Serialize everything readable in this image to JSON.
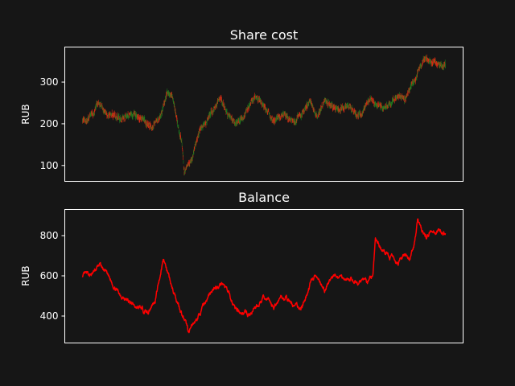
{
  "colors": {
    "background": "#161616",
    "axes": "#ffffff",
    "candle_up": "#1f7a1f",
    "candle_down": "#d62a14",
    "balance_line": "#ff0000"
  },
  "chart_data": [
    {
      "type": "candlestick",
      "title": "Share cost",
      "xlabel": "",
      "ylabel": "RUB",
      "ylim": [
        62,
        384
      ],
      "yticks": [
        100,
        200,
        300
      ],
      "xticks": [],
      "grid": false,
      "n_points": 1500,
      "close_anchors": [
        [
          0,
          210
        ],
        [
          20,
          205
        ],
        [
          60,
          245
        ],
        [
          110,
          220
        ],
        [
          160,
          212
        ],
        [
          230,
          222
        ],
        [
          280,
          190
        ],
        [
          320,
          210
        ],
        [
          350,
          275
        ],
        [
          370,
          270
        ],
        [
          390,
          210
        ],
        [
          410,
          160
        ],
        [
          420,
          80
        ],
        [
          440,
          100
        ],
        [
          460,
          130
        ],
        [
          490,
          190
        ],
        [
          520,
          220
        ],
        [
          550,
          240
        ],
        [
          570,
          260
        ],
        [
          600,
          225
        ],
        [
          630,
          205
        ],
        [
          660,
          210
        ],
        [
          690,
          240
        ],
        [
          710,
          265
        ],
        [
          740,
          245
        ],
        [
          770,
          225
        ],
        [
          790,
          200
        ],
        [
          820,
          225
        ],
        [
          850,
          210
        ],
        [
          880,
          205
        ],
        [
          910,
          235
        ],
        [
          940,
          255
        ],
        [
          970,
          215
        ],
        [
          1000,
          255
        ],
        [
          1030,
          245
        ],
        [
          1060,
          235
        ],
        [
          1090,
          245
        ],
        [
          1120,
          230
        ],
        [
          1150,
          225
        ],
        [
          1180,
          255
        ],
        [
          1210,
          245
        ],
        [
          1240,
          235
        ],
        [
          1270,
          250
        ],
        [
          1300,
          260
        ],
        [
          1330,
          255
        ],
        [
          1360,
          300
        ],
        [
          1380,
          320
        ],
        [
          1400,
          340
        ],
        [
          1420,
          355
        ],
        [
          1440,
          345
        ]
      ]
    },
    {
      "type": "line",
      "title": "Balance",
      "xlabel": "",
      "ylabel": "RUB",
      "ylim": [
        266,
        930
      ],
      "yticks": [
        400,
        600,
        800
      ],
      "xticks": [],
      "grid": false,
      "n_points": 1500,
      "anchors": [
        [
          0,
          600
        ],
        [
          40,
          605
        ],
        [
          70,
          655
        ],
        [
          100,
          610
        ],
        [
          140,
          530
        ],
        [
          180,
          480
        ],
        [
          230,
          440
        ],
        [
          270,
          420
        ],
        [
          300,
          480
        ],
        [
          320,
          600
        ],
        [
          335,
          690
        ],
        [
          350,
          620
        ],
        [
          370,
          540
        ],
        [
          400,
          450
        ],
        [
          420,
          380
        ],
        [
          440,
          320
        ],
        [
          460,
          360
        ],
        [
          480,
          400
        ],
        [
          500,
          450
        ],
        [
          520,
          500
        ],
        [
          550,
          540
        ],
        [
          580,
          570
        ],
        [
          600,
          520
        ],
        [
          630,
          440
        ],
        [
          660,
          420
        ],
        [
          690,
          400
        ],
        [
          720,
          450
        ],
        [
          750,
          490
        ],
        [
          770,
          480
        ],
        [
          790,
          440
        ],
        [
          820,
          500
        ],
        [
          850,
          480
        ],
        [
          870,
          450
        ],
        [
          900,
          440
        ],
        [
          920,
          470
        ],
        [
          940,
          560
        ],
        [
          960,
          600
        ],
        [
          980,
          560
        ],
        [
          1000,
          520
        ],
        [
          1020,
          580
        ],
        [
          1050,
          600
        ],
        [
          1080,
          590
        ],
        [
          1110,
          580
        ],
        [
          1140,
          560
        ],
        [
          1160,
          590
        ],
        [
          1180,
          570
        ],
        [
          1200,
          600
        ],
        [
          1210,
          780
        ],
        [
          1230,
          740
        ],
        [
          1260,
          700
        ],
        [
          1290,
          680
        ],
        [
          1310,
          670
        ],
        [
          1330,
          700
        ],
        [
          1350,
          680
        ],
        [
          1370,
          750
        ],
        [
          1385,
          880
        ],
        [
          1400,
          830
        ],
        [
          1420,
          790
        ],
        [
          1440,
          830
        ],
        [
          1460,
          820
        ]
      ]
    }
  ]
}
